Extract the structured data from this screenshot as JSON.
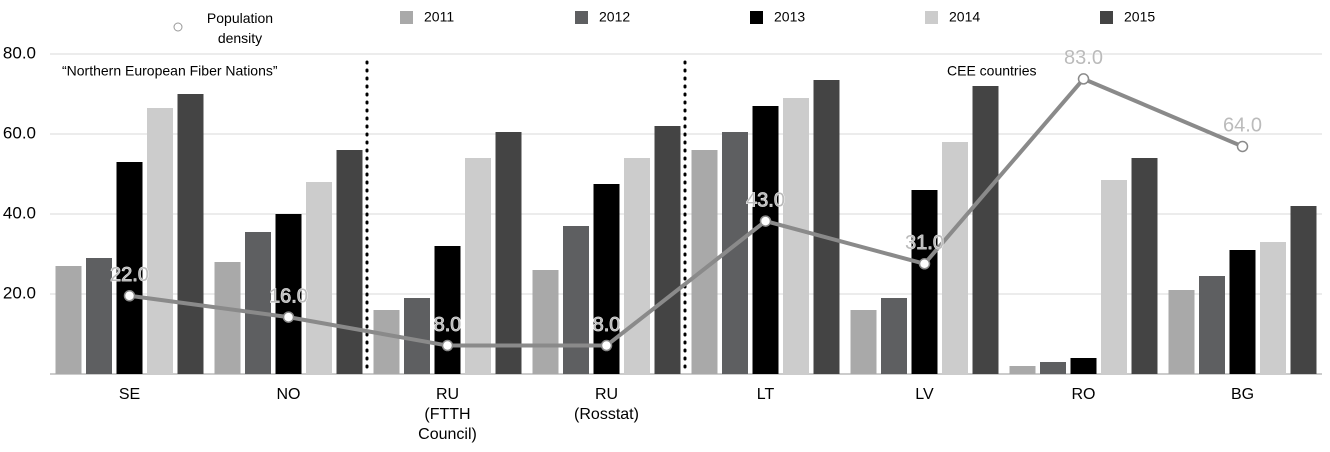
{
  "chart_data": {
    "type": "bar",
    "categories": [
      "SE",
      "NO",
      "RU\n(FTTH\nCouncil)",
      "RU\n(Rosstat)",
      "LT",
      "LV",
      "RO",
      "BG"
    ],
    "series": [
      {
        "name": "2011",
        "color": "#a9a9a9",
        "values": [
          27,
          28,
          16,
          26,
          56,
          16,
          2,
          21
        ]
      },
      {
        "name": "2012",
        "color": "#5e5f61",
        "values": [
          29,
          35.5,
          19,
          37,
          60.5,
          19,
          3,
          24.5
        ]
      },
      {
        "name": "2013",
        "color": "#000000",
        "values": [
          53,
          40,
          32,
          47.5,
          67,
          46,
          4,
          31
        ]
      },
      {
        "name": "2014",
        "color": "#cccccc",
        "values": [
          66.5,
          48,
          54,
          54,
          69,
          58,
          48.5,
          33
        ]
      },
      {
        "name": "2015",
        "color": "#444444",
        "values": [
          70,
          56,
          60.5,
          62,
          73.5,
          72,
          54,
          42
        ]
      },
      {
        "name": "Population density",
        "type": "line",
        "axis": "y2",
        "color": "#8a8a8a",
        "values": [
          22,
          16,
          8,
          8,
          43,
          31,
          83,
          64
        ],
        "value_labels": [
          "22.0",
          "16.0",
          "8.0",
          "8.0",
          "43.0",
          "31.0",
          "83.0",
          "64.0"
        ]
      }
    ],
    "ylim": [
      0,
      80
    ],
    "yticks": [
      {
        "value": 20,
        "label": "20.0"
      },
      {
        "value": 40,
        "label": "40.0"
      },
      {
        "value": 60,
        "label": "60.0"
      },
      {
        "value": 80,
        "label": "80.0"
      }
    ],
    "y2lim": [
      0,
      90
    ],
    "grid": true,
    "legend": "top",
    "annotations": [
      "“Northern European Fiber Nations”",
      "CEE countries"
    ]
  }
}
